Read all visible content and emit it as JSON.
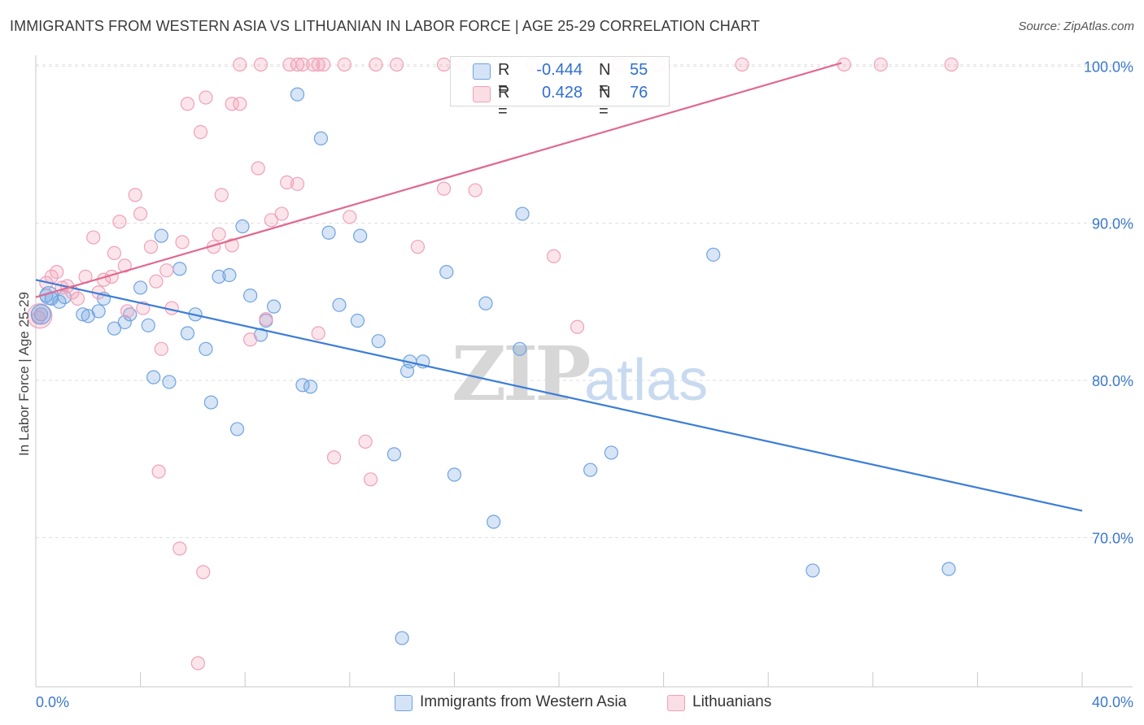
{
  "title": "IMMIGRANTS FROM WESTERN ASIA VS LITHUANIAN IN LABOR FORCE | AGE 25-29 CORRELATION CHART",
  "source": "Source: ZipAtlas.com",
  "watermark": {
    "part1": "ZIP",
    "part2": "atlas"
  },
  "legend_stats": [
    {
      "r_label": "R =",
      "r_value": "-0.444",
      "n_label": "N =",
      "n_value": "55",
      "color": "#6fa3e0"
    },
    {
      "r_label": "R =",
      "r_value": "0.428",
      "n_label": "N =",
      "n_value": "76",
      "color": "#f0a0b8"
    }
  ],
  "chart_data": {
    "type": "scatter",
    "xlabel": "",
    "ylabel": "In Labor Force | Age 25-29",
    "x_tick_labels": {
      "min": "0.0%",
      "max": "40.0%"
    },
    "y_tick_labels": [
      "100.0%",
      "90.0%",
      "80.0%",
      "70.0%"
    ],
    "y_ticks": [
      100,
      90,
      80,
      70
    ],
    "xlim": [
      0,
      40
    ],
    "ylim": [
      60.5,
      101
    ],
    "grid": true,
    "legend_position": "bottom",
    "series": [
      {
        "name": "Immigrants from Western Asia",
        "stroke": "#6fa3e0",
        "fill": "rgba(111,163,224,0.28)",
        "trend": {
          "x": [
            0,
            40
          ],
          "y": [
            86.4,
            71.7
          ],
          "color": "#3b7dd8"
        },
        "points": [
          [
            0.2,
            84.2
          ],
          [
            0.4,
            85.4
          ],
          [
            0.6,
            85.2
          ],
          [
            0.9,
            85.0
          ],
          [
            1.1,
            85.3
          ],
          [
            1.8,
            84.2
          ],
          [
            2.0,
            84.1
          ],
          [
            2.4,
            84.4
          ],
          [
            2.6,
            85.2
          ],
          [
            3.0,
            83.3
          ],
          [
            3.4,
            83.7
          ],
          [
            3.6,
            84.2
          ],
          [
            4.0,
            85.9
          ],
          [
            4.3,
            83.5
          ],
          [
            4.5,
            80.2
          ],
          [
            4.8,
            89.2
          ],
          [
            5.1,
            79.9
          ],
          [
            5.5,
            87.1
          ],
          [
            5.8,
            83.0
          ],
          [
            6.1,
            84.2
          ],
          [
            6.5,
            82.0
          ],
          [
            6.7,
            78.6
          ],
          [
            7.0,
            86.6
          ],
          [
            7.4,
            86.7
          ],
          [
            7.7,
            76.9
          ],
          [
            7.9,
            89.8
          ],
          [
            8.2,
            85.4
          ],
          [
            8.6,
            82.9
          ],
          [
            8.8,
            83.8
          ],
          [
            9.1,
            84.7
          ],
          [
            10.0,
            98.2
          ],
          [
            10.2,
            79.7
          ],
          [
            10.5,
            79.6
          ],
          [
            10.9,
            95.4
          ],
          [
            11.2,
            89.4
          ],
          [
            11.6,
            84.8
          ],
          [
            12.3,
            83.8
          ],
          [
            12.4,
            89.2
          ],
          [
            13.1,
            82.5
          ],
          [
            13.7,
            75.3
          ],
          [
            14.2,
            80.6
          ],
          [
            14.3,
            81.2
          ],
          [
            14.8,
            81.2
          ],
          [
            15.7,
            86.9
          ],
          [
            16.0,
            74.0
          ],
          [
            17.2,
            84.9
          ],
          [
            17.5,
            71.0
          ],
          [
            18.5,
            82.0
          ],
          [
            18.6,
            90.6
          ],
          [
            21.2,
            74.3
          ],
          [
            22.0,
            75.4
          ],
          [
            25.9,
            88.0
          ],
          [
            29.7,
            67.9
          ],
          [
            14.0,
            63.6
          ],
          [
            34.9,
            68.0
          ]
        ]
      },
      {
        "name": "Lithuanians",
        "stroke": "#f0a0b8",
        "fill": "rgba(240,160,184,0.28)",
        "trend": {
          "x": [
            0,
            30.8
          ],
          "y": [
            85.3,
            100.2
          ],
          "color": "#e06890"
        },
        "points": [
          [
            0.1,
            84.0
          ],
          [
            0.4,
            86.2
          ],
          [
            0.6,
            86.6
          ],
          [
            0.8,
            86.9
          ],
          [
            1.0,
            85.9
          ],
          [
            1.2,
            86.0
          ],
          [
            1.4,
            85.6
          ],
          [
            1.6,
            85.2
          ],
          [
            1.9,
            86.6
          ],
          [
            2.2,
            89.1
          ],
          [
            2.4,
            85.6
          ],
          [
            2.6,
            86.4
          ],
          [
            2.9,
            86.6
          ],
          [
            3.0,
            88.1
          ],
          [
            3.2,
            90.1
          ],
          [
            3.4,
            87.3
          ],
          [
            3.5,
            84.4
          ],
          [
            3.8,
            91.8
          ],
          [
            4.0,
            90.6
          ],
          [
            4.1,
            84.6
          ],
          [
            4.4,
            88.5
          ],
          [
            4.6,
            86.3
          ],
          [
            4.8,
            82.0
          ],
          [
            5.0,
            87.0
          ],
          [
            5.2,
            84.6
          ],
          [
            5.6,
            88.8
          ],
          [
            5.8,
            97.6
          ],
          [
            6.3,
            95.8
          ],
          [
            6.5,
            98.0
          ],
          [
            6.8,
            88.5
          ],
          [
            7.0,
            89.3
          ],
          [
            7.1,
            91.8
          ],
          [
            7.5,
            97.6
          ],
          [
            7.8,
            97.6
          ],
          [
            7.5,
            88.6
          ],
          [
            8.2,
            82.6
          ],
          [
            8.5,
            93.5
          ],
          [
            8.8,
            83.9
          ],
          [
            9.0,
            90.2
          ],
          [
            9.4,
            90.6
          ],
          [
            9.6,
            92.6
          ],
          [
            10.0,
            92.5
          ],
          [
            10.8,
            83.0
          ],
          [
            11.4,
            75.1
          ],
          [
            12.0,
            90.4
          ],
          [
            12.6,
            76.1
          ],
          [
            12.8,
            73.7
          ],
          [
            14.6,
            88.5
          ],
          [
            15.6,
            92.2
          ],
          [
            16.8,
            92.1
          ],
          [
            19.8,
            87.9
          ],
          [
            20.7,
            83.4
          ],
          [
            4.7,
            74.2
          ],
          [
            5.5,
            69.3
          ],
          [
            6.4,
            67.8
          ],
          [
            6.2,
            62.0
          ],
          [
            7.8,
            100.1
          ],
          [
            8.6,
            100.1
          ],
          [
            9.7,
            100.1
          ],
          [
            10.0,
            100.1
          ],
          [
            10.2,
            100.1
          ],
          [
            10.6,
            100.1
          ],
          [
            10.8,
            100.1
          ],
          [
            11.0,
            100.1
          ],
          [
            11.8,
            100.1
          ],
          [
            13.0,
            100.1
          ],
          [
            13.8,
            100.1
          ],
          [
            15.6,
            100.1
          ],
          [
            16.3,
            100.1
          ],
          [
            19.0,
            100.1
          ],
          [
            22.3,
            100.1
          ],
          [
            23.8,
            100.1
          ],
          [
            27.0,
            100.1
          ],
          [
            30.9,
            100.1
          ],
          [
            32.3,
            100.1
          ],
          [
            35.0,
            100.1
          ]
        ]
      }
    ]
  }
}
